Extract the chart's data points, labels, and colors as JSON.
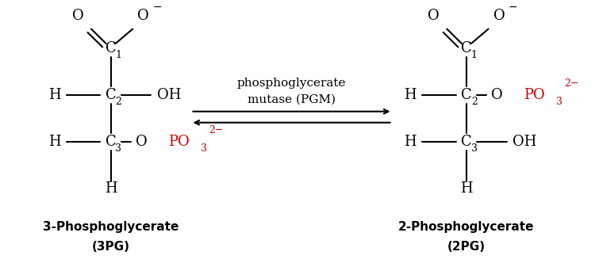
{
  "bg_color": "#ffffff",
  "black": "#000000",
  "red": "#cc0000",
  "fig_width": 7.5,
  "fig_height": 3.32,
  "dpi": 100,
  "left_label_line1": "3-Phosphoglycerate",
  "left_label_line2": "(3PG)",
  "right_label_line1": "2-Phosphoglycerate",
  "right_label_line2": "(2PG)",
  "enzyme_line1": "phosphoglycerate",
  "enzyme_line2": "mutase (PGM)"
}
